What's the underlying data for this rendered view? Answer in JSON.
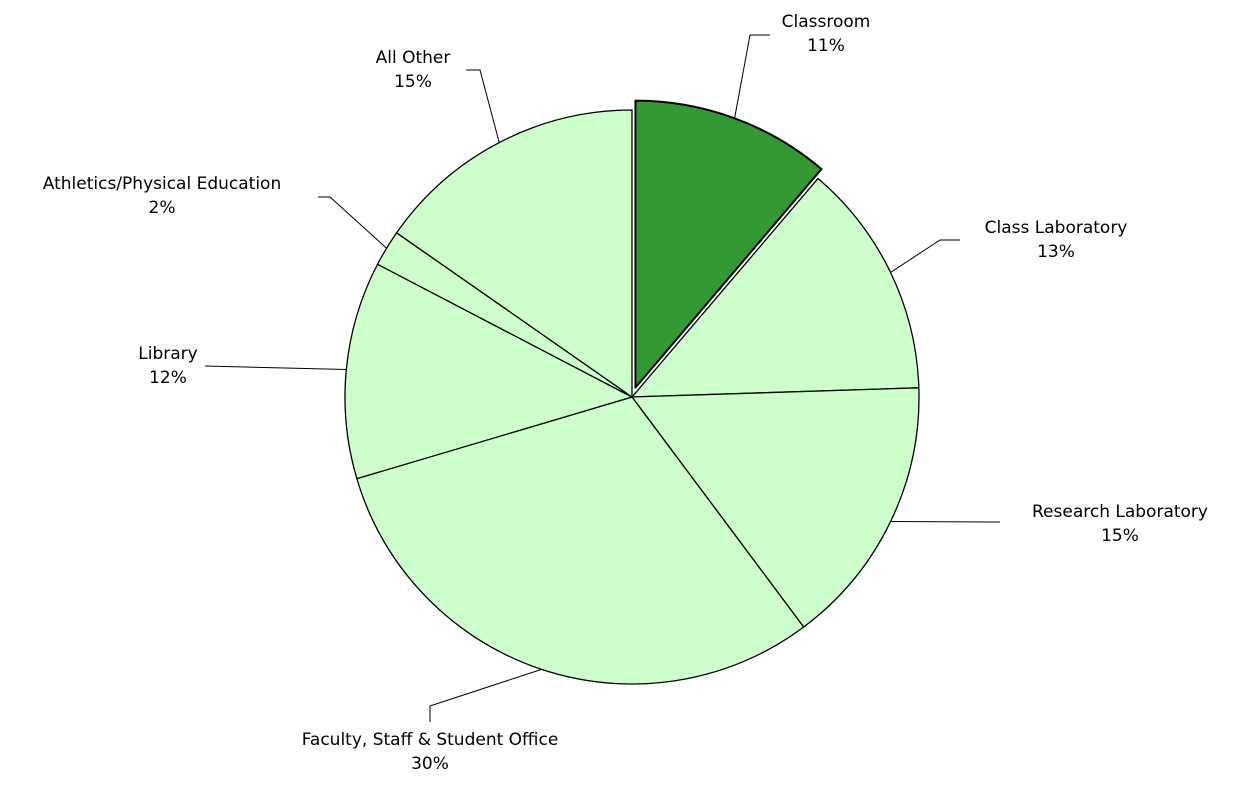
{
  "chart_data": {
    "type": "pie",
    "categories": [
      "Classroom",
      "Class Laboratory",
      "Research Laboratory",
      "Faculty, Staff & Student Office",
      "Library",
      "Athletics/Physical Education",
      "All Other"
    ],
    "values": [
      11,
      13,
      15,
      30,
      12,
      2,
      15
    ],
    "value_labels": [
      "11%",
      "13%",
      "15%",
      "30%",
      "12%",
      "2%",
      "15%"
    ],
    "colors": [
      "#339933",
      "#ccffcc",
      "#ccffcc",
      "#ccffcc",
      "#ccffcc",
      "#ccffcc",
      "#ccffcc"
    ]
  }
}
